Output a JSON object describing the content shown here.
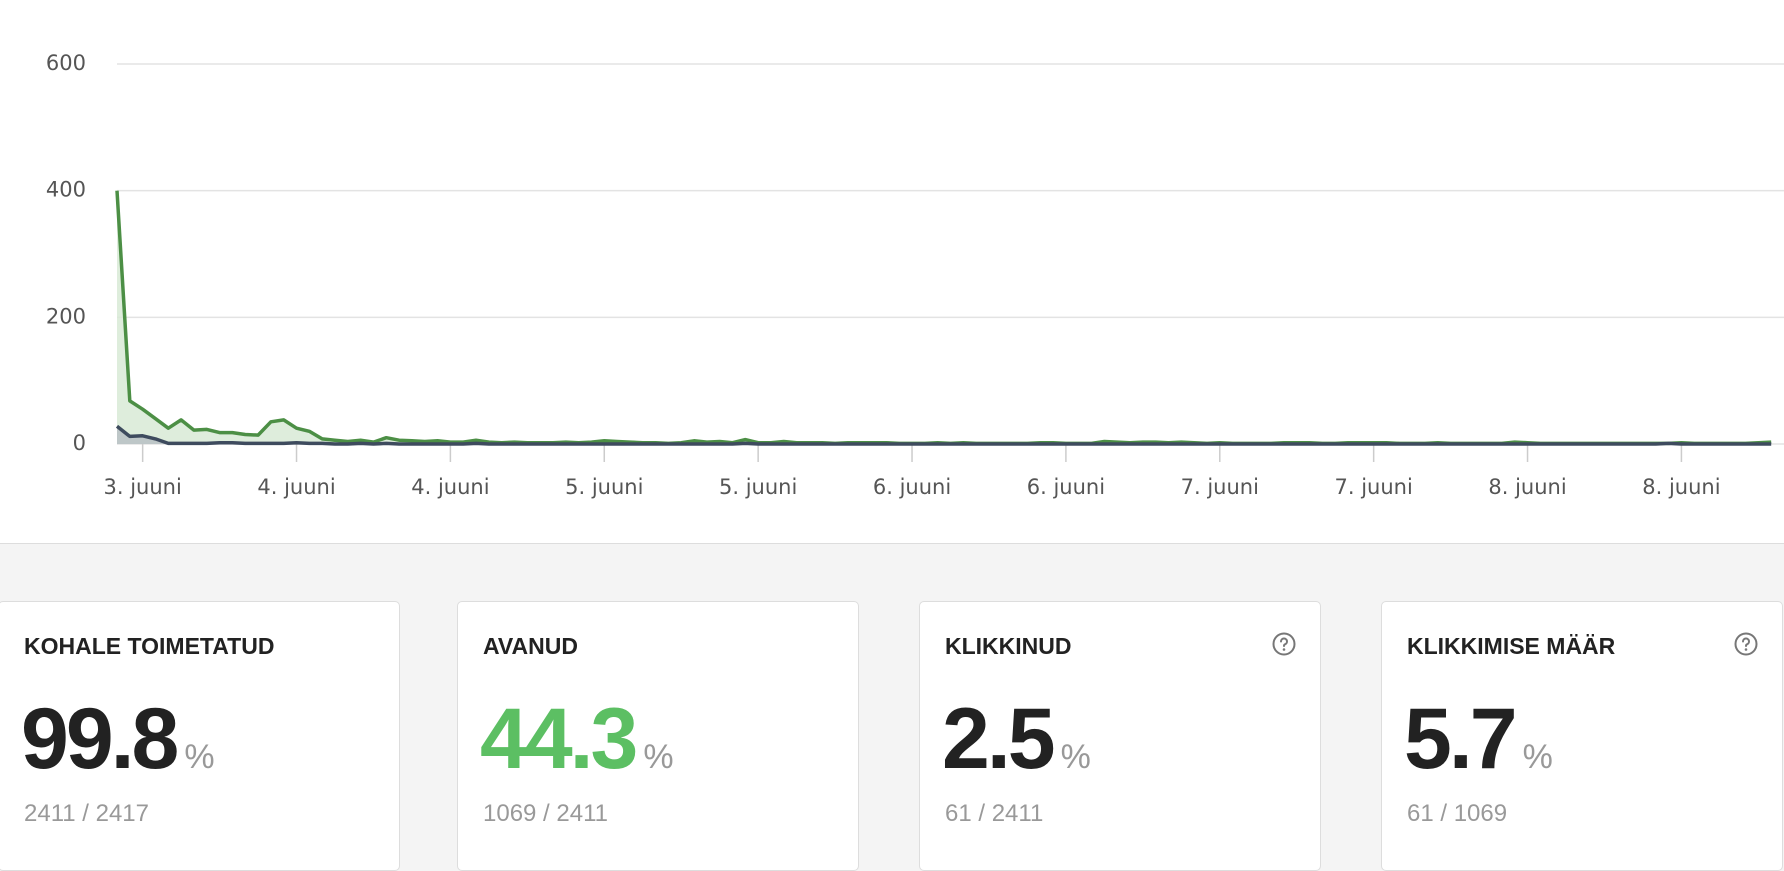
{
  "chart_data": {
    "type": "area",
    "x": [
      0,
      1,
      2,
      3,
      4,
      5,
      6,
      7,
      8,
      9,
      10,
      11,
      12,
      13,
      14,
      15,
      16,
      17,
      18,
      19,
      20,
      21,
      22,
      23,
      24,
      25,
      26,
      27,
      28,
      29,
      30,
      31,
      32,
      33,
      34,
      35,
      36,
      37,
      38,
      39,
      40,
      41,
      42,
      43,
      44,
      45,
      46,
      47,
      48,
      49,
      50,
      51,
      52,
      53,
      54,
      55,
      56,
      57,
      58,
      59,
      60,
      61,
      62,
      63,
      64,
      65,
      66,
      67,
      68,
      69,
      70,
      71,
      72,
      73,
      74,
      75,
      76,
      77,
      78,
      79,
      80,
      81,
      82,
      83,
      84,
      85,
      86,
      87,
      88,
      89,
      90,
      91,
      92,
      93,
      94,
      95,
      96,
      97,
      98,
      99,
      100,
      101,
      102,
      103,
      104,
      105,
      106,
      107,
      108,
      109,
      110,
      111,
      112,
      113,
      114,
      115,
      116,
      117,
      118,
      119,
      120,
      121,
      122,
      123,
      124,
      125,
      126,
      127,
      128,
      129
    ],
    "series": [
      {
        "color": "#4c8f45",
        "fill": "#d6e8d3",
        "values": [
          400,
          68,
          55,
          40,
          25,
          38,
          22,
          23,
          18,
          18,
          15,
          14,
          35,
          38,
          25,
          20,
          8,
          6,
          4,
          6,
          3,
          10,
          6,
          5,
          4,
          5,
          3,
          3,
          6,
          3,
          2,
          3,
          2,
          2,
          2,
          3,
          2,
          3,
          5,
          4,
          3,
          2,
          2,
          1,
          2,
          5,
          3,
          4,
          2,
          7,
          2,
          2,
          4,
          2,
          2,
          2,
          1,
          2,
          2,
          2,
          2,
          1,
          1,
          1,
          2,
          1,
          2,
          1,
          1,
          1,
          1,
          1,
          2,
          2,
          1,
          1,
          1,
          4,
          3,
          2,
          3,
          3,
          2,
          3,
          2,
          1,
          2,
          1,
          1,
          1,
          1,
          2,
          2,
          2,
          1,
          1,
          2,
          2,
          2,
          2,
          1,
          1,
          1,
          2,
          1,
          1,
          1,
          1,
          1,
          3,
          2,
          1,
          1,
          1,
          1,
          1,
          1,
          1,
          1,
          1,
          1,
          1,
          2,
          1,
          1,
          1,
          1,
          1,
          2,
          3
        ]
      },
      {
        "color": "#3e4b5e",
        "fill": "#b5bdc3",
        "values": [
          28,
          12,
          13,
          8,
          1,
          1,
          1,
          1,
          2,
          2,
          1,
          1,
          1,
          1,
          2,
          1,
          1,
          0,
          0,
          1,
          0,
          1,
          0,
          0,
          0,
          0,
          0,
          0,
          1,
          0,
          0,
          0,
          0,
          0,
          0,
          0,
          0,
          0,
          0,
          0,
          0,
          0,
          0,
          0,
          0,
          0,
          0,
          0,
          0,
          1,
          0,
          0,
          0,
          0,
          0,
          0,
          0,
          0,
          0,
          0,
          0,
          0,
          0,
          0,
          0,
          0,
          0,
          0,
          0,
          0,
          0,
          0,
          0,
          0,
          0,
          0,
          0,
          0,
          0,
          0,
          0,
          0,
          0,
          0,
          0,
          0,
          0,
          0,
          0,
          0,
          0,
          0,
          0,
          0,
          0,
          0,
          0,
          0,
          0,
          0,
          0,
          0,
          0,
          0,
          0,
          0,
          0,
          0,
          0,
          0,
          0,
          0,
          0,
          0,
          0,
          0,
          0,
          0,
          0,
          0,
          0,
          1,
          0,
          0,
          0,
          0,
          0,
          0,
          0,
          0
        ]
      }
    ],
    "xlim": [
      0,
      130
    ],
    "xticks": [
      {
        "value": 2,
        "label": "3. juuni"
      },
      {
        "value": 14,
        "label": "4. juuni"
      },
      {
        "value": 26,
        "label": "4. juuni"
      },
      {
        "value": 38,
        "label": "5. juuni"
      },
      {
        "value": 50,
        "label": "5. juuni"
      },
      {
        "value": 62,
        "label": "6. juuni"
      },
      {
        "value": 74,
        "label": "6. juuni"
      },
      {
        "value": 86,
        "label": "7. juuni"
      },
      {
        "value": 98,
        "label": "7. juuni"
      },
      {
        "value": 110,
        "label": "8. juuni"
      },
      {
        "value": 122,
        "label": "8. juuni"
      }
    ],
    "ylim": [
      0,
      600
    ],
    "yticks": [
      0,
      200,
      400,
      600
    ],
    "grid": true
  },
  "cards": [
    {
      "title": "KOHALE TOIMETATUD",
      "value": "99.8",
      "unit": "%",
      "sub": "2411 / 2417",
      "color": "#222222",
      "help": false
    },
    {
      "title": "AVANUD",
      "value": "44.3",
      "unit": "%",
      "sub": "1069 / 2411",
      "color": "#5cbf63",
      "help": false
    },
    {
      "title": "KLIKKINUD",
      "value": "2.5",
      "unit": "%",
      "sub": "61 / 2411",
      "color": "#222222",
      "help": true
    },
    {
      "title": "KLIKKIMISE MÄÄR",
      "value": "5.7",
      "unit": "%",
      "sub": "61 / 1069",
      "color": "#222222",
      "help": true
    }
  ]
}
